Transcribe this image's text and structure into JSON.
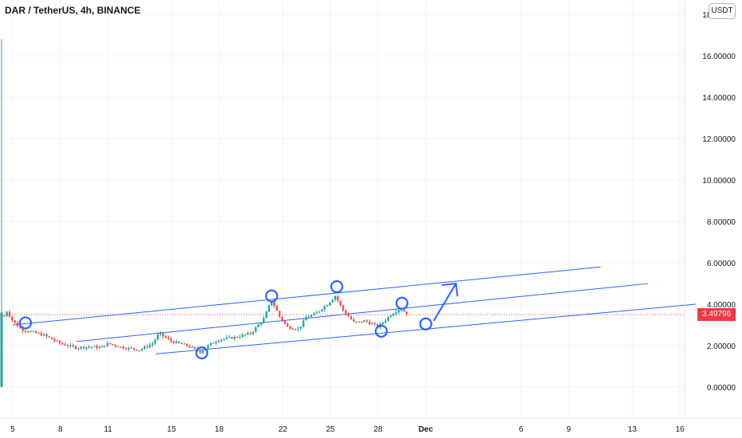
{
  "header": {
    "symbol": "DAR / TetherUS, 4h, BINANCE"
  },
  "currency_button": "USDT",
  "last_price_label": "3.49796",
  "chart_data": {
    "type": "candlestick",
    "y_ticks": [
      "18.00000",
      "16.00000",
      "14.00000",
      "12.00000",
      "10.00000",
      "8.00000",
      "6.00000",
      "4.00000",
      "2.00000",
      "0.00000"
    ],
    "y_tick_values": [
      18,
      16,
      14,
      12,
      10,
      8,
      6,
      4,
      2,
      0
    ],
    "ylim": [
      -1.5,
      18.7
    ],
    "x_ticks": [
      "5",
      "8",
      "11",
      "15",
      "18",
      "22",
      "25",
      "28",
      "Dec",
      "6",
      "9",
      "13",
      "16"
    ],
    "x_tick_days": [
      5,
      8,
      11,
      15,
      18,
      22,
      25,
      28,
      31,
      37,
      40,
      44,
      47
    ],
    "xlim": [
      4.2,
      47.3
    ],
    "last_price": 3.49796,
    "colors": {
      "up": "#26a69a",
      "down": "#ef5350",
      "annotation": "#2962ff",
      "channel": "#2962ff",
      "grid": "#e0e3eb"
    },
    "price_path": [
      {
        "day": 4.3,
        "price": 3.1
      },
      {
        "day": 4.6,
        "price": 3.7
      },
      {
        "day": 5.0,
        "price": 3.2
      },
      {
        "day": 5.5,
        "price": 2.8
      },
      {
        "day": 6.0,
        "price": 2.7
      },
      {
        "day": 7.0,
        "price": 2.5
      },
      {
        "day": 8.0,
        "price": 2.1
      },
      {
        "day": 9.0,
        "price": 1.9
      },
      {
        "day": 10.0,
        "price": 1.95
      },
      {
        "day": 10.5,
        "price": 1.9
      },
      {
        "day": 11.0,
        "price": 2.1
      },
      {
        "day": 12.0,
        "price": 1.9
      },
      {
        "day": 13.0,
        "price": 1.8
      },
      {
        "day": 13.8,
        "price": 2.1
      },
      {
        "day": 14.2,
        "price": 2.6
      },
      {
        "day": 15.0,
        "price": 2.2
      },
      {
        "day": 16.0,
        "price": 2.0
      },
      {
        "day": 16.8,
        "price": 1.7
      },
      {
        "day": 17.5,
        "price": 2.1
      },
      {
        "day": 18.0,
        "price": 2.3
      },
      {
        "day": 19.0,
        "price": 2.4
      },
      {
        "day": 20.0,
        "price": 2.6
      },
      {
        "day": 20.8,
        "price": 3.3
      },
      {
        "day": 21.3,
        "price": 4.2
      },
      {
        "day": 21.8,
        "price": 3.4
      },
      {
        "day": 22.3,
        "price": 2.9
      },
      {
        "day": 23.0,
        "price": 2.8
      },
      {
        "day": 23.5,
        "price": 3.4
      },
      {
        "day": 24.0,
        "price": 3.5
      },
      {
        "day": 24.8,
        "price": 4.0
      },
      {
        "day": 25.3,
        "price": 4.4
      },
      {
        "day": 25.8,
        "price": 3.7
      },
      {
        "day": 26.5,
        "price": 3.1
      },
      {
        "day": 27.2,
        "price": 3.2
      },
      {
        "day": 28.0,
        "price": 2.9
      },
      {
        "day": 28.8,
        "price": 3.5
      },
      {
        "day": 29.4,
        "price": 3.8
      },
      {
        "day": 29.9,
        "price": 3.5
      }
    ],
    "spike": {
      "day": 4.3,
      "high": 16.8,
      "low": 0.0
    }
  },
  "annotations": {
    "channel_lines": [
      {
        "from": {
          "day": 5.0,
          "price": 3.0
        },
        "to": {
          "day": 42.0,
          "price": 5.8
        }
      },
      {
        "from": {
          "day": 9.0,
          "price": 2.2
        },
        "to": {
          "day": 45.0,
          "price": 5.0
        }
      },
      {
        "from": {
          "day": 14.0,
          "price": 1.6
        },
        "to": {
          "day": 48.0,
          "price": 4.0
        }
      }
    ],
    "circles": [
      {
        "day": 5.8,
        "price": 3.1
      },
      {
        "day": 16.9,
        "price": 1.65
      },
      {
        "day": 21.3,
        "price": 4.4
      },
      {
        "day": 25.4,
        "price": 4.85
      },
      {
        "day": 28.2,
        "price": 2.7
      },
      {
        "day": 29.5,
        "price": 4.05
      },
      {
        "day": 31.0,
        "price": 3.05
      }
    ],
    "arrow": {
      "from": {
        "day": 31.5,
        "price": 3.2
      },
      "to": {
        "day": 32.9,
        "price": 5.0
      }
    }
  }
}
